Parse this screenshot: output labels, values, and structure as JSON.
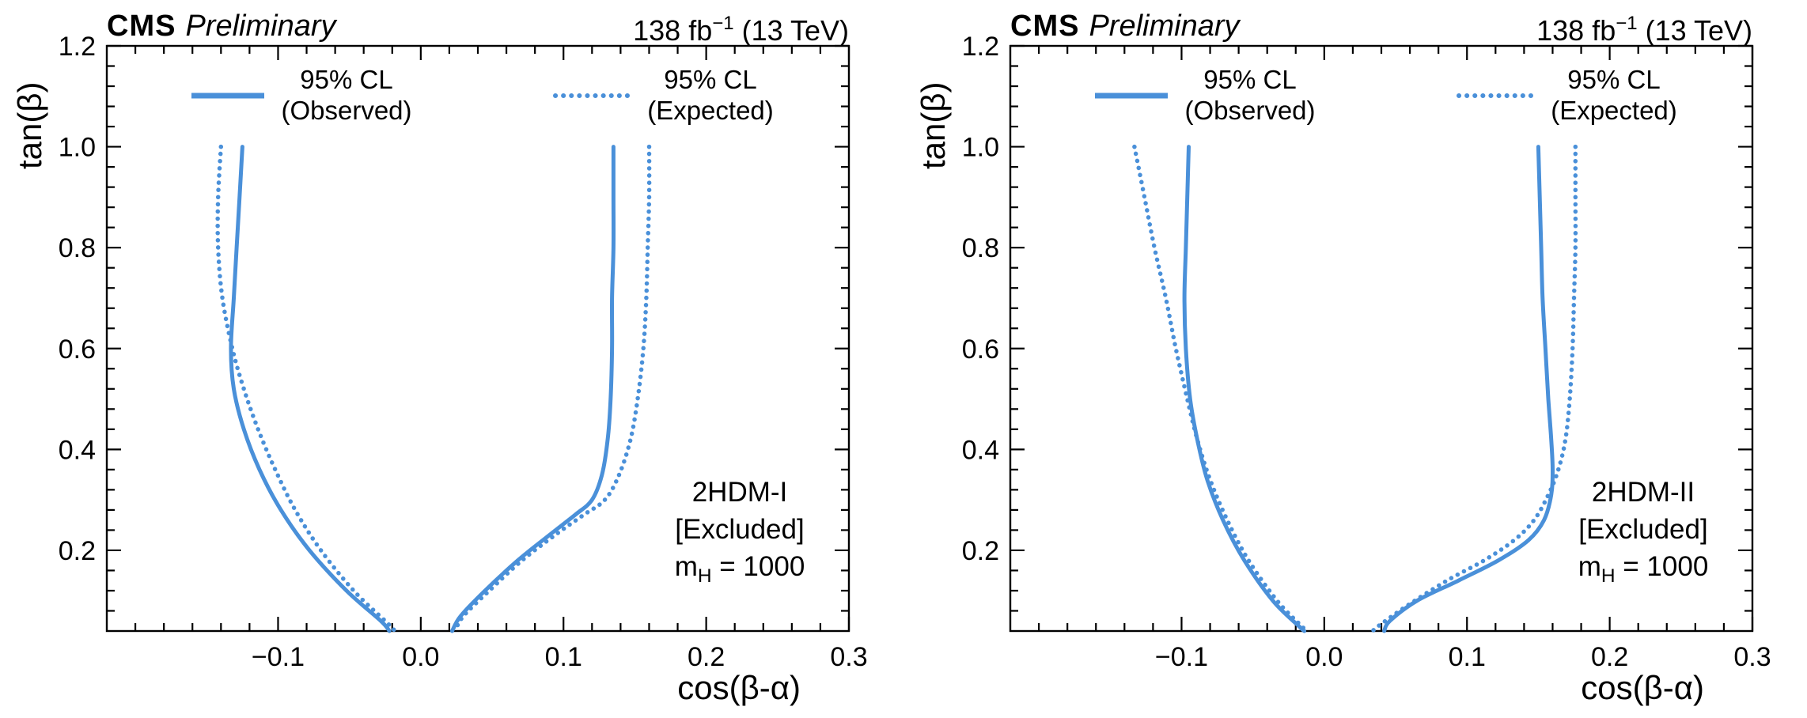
{
  "accent_color": "#4a90d9",
  "frame_color": "#000000",
  "panels": [
    {
      "header": {
        "experiment": "CMS",
        "status": "Preliminary",
        "lumi_prefix": "138 fb",
        "lumi_superscript": "−1",
        "lumi_suffix": " (13 TeV)"
      },
      "axes": {
        "x_label": "cos(β-α)",
        "y_label": "tan(β)"
      },
      "legend": [
        {
          "style": "solid",
          "line1": "95% CL",
          "line2": "(Observed)"
        },
        {
          "style": "dotted",
          "line1": "95% CL",
          "line2": "(Expected)"
        }
      ],
      "annotation": {
        "line1": "2HDM-I",
        "line2": "[Excluded]",
        "mass_prefix": "m",
        "mass_subscript": "H",
        "mass_suffix": " = 1000"
      }
    },
    {
      "header": {
        "experiment": "CMS",
        "status": "Preliminary",
        "lumi_prefix": "138 fb",
        "lumi_superscript": "−1",
        "lumi_suffix": " (13 TeV)"
      },
      "axes": {
        "x_label": "cos(β-α)",
        "y_label": "tan(β)"
      },
      "legend": [
        {
          "style": "solid",
          "line1": "95% CL",
          "line2": "(Observed)"
        },
        {
          "style": "dotted",
          "line1": "95% CL",
          "line2": "(Expected)"
        }
      ],
      "annotation": {
        "line1": "2HDM-II",
        "line2": "[Excluded]",
        "mass_prefix": "m",
        "mass_subscript": "H",
        "mass_suffix": " = 1000"
      }
    }
  ],
  "chart_data": [
    {
      "type": "line",
      "annotation": "2HDM-I [Excluded] m_H = 1000",
      "header_left": "CMS Preliminary",
      "header_right": "138 fb−1 (13 TeV)",
      "xlabel": "cos(β-α)",
      "ylabel": "tan(β)",
      "xlim": [
        -0.22,
        0.3
      ],
      "ylim": [
        0.04,
        1.2
      ],
      "xticks": [
        -0.1,
        0.0,
        0.1,
        0.2,
        0.3
      ],
      "yticks": [
        0.2,
        0.4,
        0.6,
        0.8,
        1.0,
        1.2
      ],
      "xminor_step": 0.02,
      "yminor_step": 0.04,
      "grid": false,
      "legend_position": "top-inside",
      "series": [
        {
          "name": "95% CL (Observed)",
          "style": "solid",
          "color": "#4a90d9",
          "branches": [
            [
              [
                -0.125,
                1.0
              ],
              [
                -0.127,
                0.9
              ],
              [
                -0.129,
                0.8
              ],
              [
                -0.131,
                0.7
              ],
              [
                -0.133,
                0.6
              ],
              [
                -0.131,
                0.52
              ],
              [
                -0.124,
                0.44
              ],
              [
                -0.113,
                0.36
              ],
              [
                -0.098,
                0.28
              ],
              [
                -0.078,
                0.2
              ],
              [
                -0.052,
                0.12
              ],
              [
                -0.028,
                0.06
              ],
              [
                -0.022,
                0.04
              ]
            ],
            [
              [
                0.135,
                1.0
              ],
              [
                0.135,
                0.9
              ],
              [
                0.135,
                0.8
              ],
              [
                0.134,
                0.7
              ],
              [
                0.134,
                0.6
              ],
              [
                0.133,
                0.5
              ],
              [
                0.131,
                0.42
              ],
              [
                0.127,
                0.35
              ],
              [
                0.12,
                0.3
              ],
              [
                0.108,
                0.27
              ],
              [
                0.09,
                0.23
              ],
              [
                0.068,
                0.18
              ],
              [
                0.045,
                0.12
              ],
              [
                0.028,
                0.07
              ],
              [
                0.022,
                0.04
              ]
            ]
          ]
        },
        {
          "name": "95% CL (Expected)",
          "style": "dotted",
          "color": "#4a90d9",
          "branches": [
            [
              [
                -0.14,
                1.0
              ],
              [
                -0.142,
                0.9
              ],
              [
                -0.142,
                0.8
              ],
              [
                -0.139,
                0.7
              ],
              [
                -0.132,
                0.6
              ],
              [
                -0.124,
                0.52
              ],
              [
                -0.114,
                0.44
              ],
              [
                -0.102,
                0.36
              ],
              [
                -0.088,
                0.28
              ],
              [
                -0.07,
                0.2
              ],
              [
                -0.047,
                0.12
              ],
              [
                -0.025,
                0.06
              ],
              [
                -0.018,
                0.04
              ]
            ],
            [
              [
                0.16,
                1.0
              ],
              [
                0.16,
                0.9
              ],
              [
                0.159,
                0.8
              ],
              [
                0.158,
                0.7
              ],
              [
                0.156,
                0.6
              ],
              [
                0.152,
                0.5
              ],
              [
                0.147,
                0.42
              ],
              [
                0.139,
                0.35
              ],
              [
                0.129,
                0.3
              ],
              [
                0.114,
                0.27
              ],
              [
                0.094,
                0.23
              ],
              [
                0.071,
                0.18
              ],
              [
                0.048,
                0.12
              ],
              [
                0.03,
                0.07
              ],
              [
                0.024,
                0.04
              ]
            ]
          ]
        }
      ]
    },
    {
      "type": "line",
      "annotation": "2HDM-II [Excluded] m_H = 1000",
      "header_left": "CMS Preliminary",
      "header_right": "138 fb−1 (13 TeV)",
      "xlabel": "cos(β-α)",
      "ylabel": "tan(β)",
      "xlim": [
        -0.22,
        0.3
      ],
      "ylim": [
        0.04,
        1.2
      ],
      "xticks": [
        -0.1,
        0.0,
        0.1,
        0.2,
        0.3
      ],
      "yticks": [
        0.2,
        0.4,
        0.6,
        0.8,
        1.0,
        1.2
      ],
      "xminor_step": 0.02,
      "yminor_step": 0.04,
      "grid": false,
      "legend_position": "top-inside",
      "series": [
        {
          "name": "95% CL (Observed)",
          "style": "solid",
          "color": "#4a90d9",
          "branches": [
            [
              [
                -0.095,
                1.0
              ],
              [
                -0.096,
                0.9
              ],
              [
                -0.097,
                0.8
              ],
              [
                -0.098,
                0.7
              ],
              [
                -0.097,
                0.6
              ],
              [
                -0.094,
                0.5
              ],
              [
                -0.089,
                0.42
              ],
              [
                -0.082,
                0.34
              ],
              [
                -0.071,
                0.26
              ],
              [
                -0.056,
                0.18
              ],
              [
                -0.036,
                0.1
              ],
              [
                -0.018,
                0.05
              ],
              [
                -0.014,
                0.04
              ]
            ],
            [
              [
                0.15,
                1.0
              ],
              [
                0.151,
                0.9
              ],
              [
                0.152,
                0.8
              ],
              [
                0.153,
                0.7
              ],
              [
                0.155,
                0.6
              ],
              [
                0.157,
                0.5
              ],
              [
                0.159,
                0.42
              ],
              [
                0.16,
                0.36
              ],
              [
                0.159,
                0.31
              ],
              [
                0.154,
                0.26
              ],
              [
                0.143,
                0.22
              ],
              [
                0.122,
                0.18
              ],
              [
                0.094,
                0.14
              ],
              [
                0.065,
                0.1
              ],
              [
                0.046,
                0.06
              ],
              [
                0.042,
                0.04
              ]
            ]
          ]
        },
        {
          "name": "95% CL (Expected)",
          "style": "dotted",
          "color": "#4a90d9",
          "branches": [
            [
              [
                -0.133,
                1.0
              ],
              [
                -0.126,
                0.9
              ],
              [
                -0.119,
                0.8
              ],
              [
                -0.111,
                0.7
              ],
              [
                -0.104,
                0.6
              ],
              [
                -0.096,
                0.5
              ],
              [
                -0.089,
                0.42
              ],
              [
                -0.08,
                0.34
              ],
              [
                -0.068,
                0.26
              ],
              [
                -0.053,
                0.18
              ],
              [
                -0.033,
                0.1
              ],
              [
                -0.016,
                0.05
              ],
              [
                -0.012,
                0.04
              ]
            ],
            [
              [
                0.176,
                1.0
              ],
              [
                0.176,
                0.9
              ],
              [
                0.176,
                0.8
              ],
              [
                0.175,
                0.7
              ],
              [
                0.174,
                0.6
              ],
              [
                0.172,
                0.5
              ],
              [
                0.169,
                0.42
              ],
              [
                0.164,
                0.36
              ],
              [
                0.157,
                0.31
              ],
              [
                0.147,
                0.26
              ],
              [
                0.133,
                0.22
              ],
              [
                0.112,
                0.18
              ],
              [
                0.086,
                0.14
              ],
              [
                0.058,
                0.09
              ],
              [
                0.038,
                0.05
              ],
              [
                0.034,
                0.04
              ]
            ]
          ]
        }
      ]
    }
  ]
}
